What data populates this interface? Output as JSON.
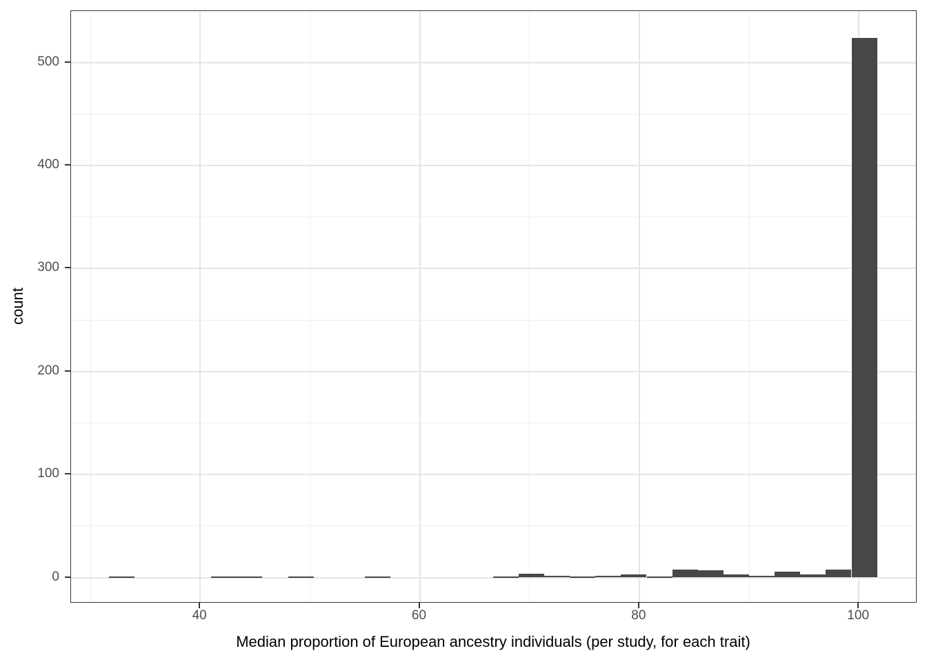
{
  "chart_data": {
    "type": "bar",
    "subtype": "histogram",
    "title": "",
    "xlabel": "Median proportion of European ancestry individuals (per study, for each trait)",
    "ylabel": "count",
    "x_tick_labels": [
      "40",
      "60",
      "80",
      "100"
    ],
    "x_ticks": [
      40,
      60,
      80,
      100
    ],
    "x_minor_gridlines": [
      30,
      50,
      70,
      90
    ],
    "y_tick_labels": [
      "0",
      "100",
      "200",
      "300",
      "400",
      "500"
    ],
    "y_ticks": [
      0,
      100,
      200,
      300,
      400,
      500
    ],
    "y_minor_gridlines": [
      50,
      150,
      250,
      350,
      450
    ],
    "xlim": [
      28.24,
      105.33
    ],
    "ylim": [
      -25.1,
      549.9
    ],
    "grid": true,
    "legend": "none",
    "binwidth": 2.3333,
    "bins": [
      {
        "start": 31.67,
        "end": 34.0,
        "count": 1
      },
      {
        "start": 34.0,
        "end": 36.33,
        "count": 0
      },
      {
        "start": 36.33,
        "end": 38.67,
        "count": 0
      },
      {
        "start": 38.67,
        "end": 41.0,
        "count": 0
      },
      {
        "start": 41.0,
        "end": 43.33,
        "count": 1
      },
      {
        "start": 43.33,
        "end": 45.67,
        "count": 1
      },
      {
        "start": 45.67,
        "end": 48.0,
        "count": 0
      },
      {
        "start": 48.0,
        "end": 50.33,
        "count": 1
      },
      {
        "start": 50.33,
        "end": 52.67,
        "count": 0
      },
      {
        "start": 52.67,
        "end": 55.0,
        "count": 0
      },
      {
        "start": 55.0,
        "end": 57.33,
        "count": 1
      },
      {
        "start": 57.33,
        "end": 59.67,
        "count": 0
      },
      {
        "start": 59.67,
        "end": 62.0,
        "count": 0
      },
      {
        "start": 62.0,
        "end": 64.33,
        "count": 0
      },
      {
        "start": 64.33,
        "end": 66.67,
        "count": 0
      },
      {
        "start": 66.67,
        "end": 69.0,
        "count": 1
      },
      {
        "start": 69.0,
        "end": 71.33,
        "count": 4
      },
      {
        "start": 71.33,
        "end": 73.67,
        "count": 2
      },
      {
        "start": 73.67,
        "end": 76.0,
        "count": 1
      },
      {
        "start": 76.0,
        "end": 78.33,
        "count": 2
      },
      {
        "start": 78.33,
        "end": 80.67,
        "count": 3
      },
      {
        "start": 80.67,
        "end": 83.0,
        "count": 1
      },
      {
        "start": 83.0,
        "end": 85.33,
        "count": 8
      },
      {
        "start": 85.33,
        "end": 87.67,
        "count": 7
      },
      {
        "start": 87.67,
        "end": 90.0,
        "count": 3
      },
      {
        "start": 90.0,
        "end": 92.33,
        "count": 2
      },
      {
        "start": 92.33,
        "end": 94.67,
        "count": 6
      },
      {
        "start": 94.67,
        "end": 97.0,
        "count": 3
      },
      {
        "start": 97.0,
        "end": 99.33,
        "count": 8
      },
      {
        "start": 99.33,
        "end": 101.67,
        "count": 524
      }
    ],
    "colors": {
      "bar_fill": "#474747",
      "panel_border": "#333333",
      "grid_major": "#e5e5e5",
      "grid_minor": "#f0f0f0",
      "tick_label": "#4d4d4d",
      "axis_title": "#000000",
      "background": "#ffffff"
    }
  }
}
